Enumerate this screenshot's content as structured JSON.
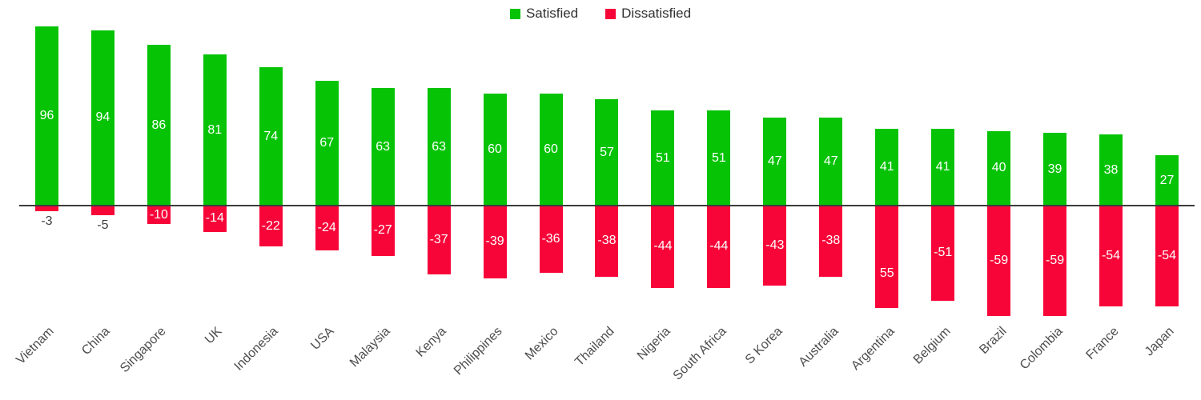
{
  "chart_data": {
    "type": "bar",
    "subtype": "diverging-column",
    "title": "",
    "xlabel": "",
    "ylabel": "",
    "grid": false,
    "legend_position": "top-center",
    "ylim": [
      -65,
      105
    ],
    "categories": [
      "Vietnam",
      "China",
      "Singapore",
      "UK",
      "Indonesia",
      "USA",
      "Malaysia",
      "Kenya",
      "Philippines",
      "Mexico",
      "Thailand",
      "Nigeria",
      "South Africa",
      "S Korea",
      "Australia",
      "Argentina",
      "Belgium",
      "Brazil",
      "Colombia",
      "France",
      "Japan"
    ],
    "series": [
      {
        "name": "Satisfied",
        "color": "#06C306",
        "values": [
          96,
          94,
          86,
          81,
          74,
          67,
          63,
          63,
          60,
          60,
          57,
          51,
          51,
          47,
          47,
          41,
          41,
          40,
          39,
          38,
          27
        ],
        "labels": [
          "96",
          "94",
          "86",
          "81",
          "74",
          "67",
          "63",
          "63",
          "60",
          "60",
          "57",
          "51",
          "51",
          "47",
          "47",
          "41",
          "41",
          "40",
          "39",
          "38",
          "27"
        ]
      },
      {
        "name": "Dissatisfied",
        "color": "#F70539",
        "values": [
          -3,
          -5,
          -10,
          -14,
          -22,
          -24,
          -27,
          -37,
          -39,
          -36,
          -38,
          -44,
          -44,
          -43,
          -38,
          -55,
          -51,
          -59,
          -59,
          -54,
          -54
        ],
        "labels": [
          "-3",
          "-5",
          "-10",
          "-14",
          "-22",
          "-24",
          "-27",
          "-37",
          "-39",
          "-36",
          "-38",
          "-44",
          "-44",
          "-43",
          "-38",
          "55",
          "-51",
          "-59",
          "-59",
          "-54",
          "-54"
        ],
        "label_dy": [
          0,
          0,
          0,
          0,
          0,
          0,
          0,
          0,
          0,
          0,
          0,
          0,
          0,
          0,
          0,
          21,
          0,
          0,
          0,
          0,
          0
        ]
      }
    ]
  }
}
